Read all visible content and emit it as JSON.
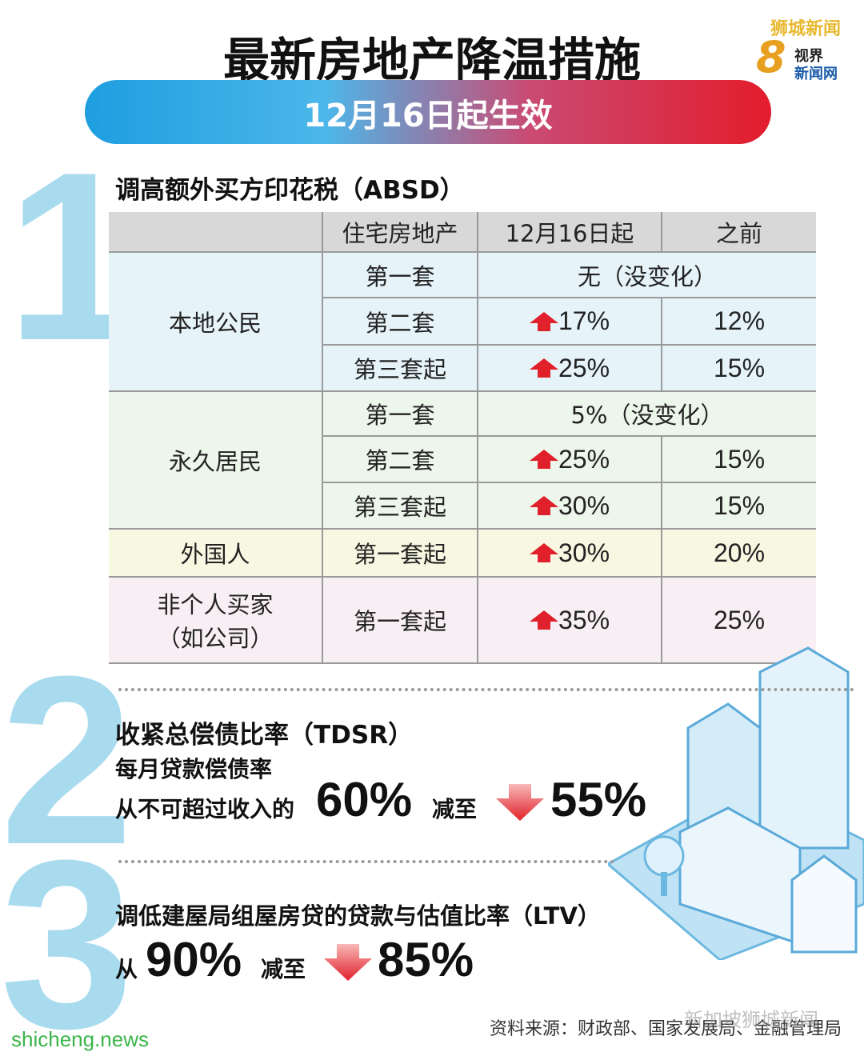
{
  "header": {
    "title": "最新房地产降温措施",
    "subtitle": "12月16日起生效"
  },
  "logo": {
    "brand": "狮城新闻",
    "number": "8",
    "line1": "视界",
    "line2": "新闻网"
  },
  "section1": {
    "number": "1",
    "heading": "调高额外买方印花税（ABSD）",
    "table": {
      "columns": [
        "住宅房地产",
        "12月16日起",
        "之前"
      ],
      "groups": [
        {
          "buyer": "本地公民",
          "rows": [
            {
              "property": "第一套",
              "unchanged": "无（没变化）"
            },
            {
              "property": "第二套",
              "new": "17%",
              "before": "12%"
            },
            {
              "property": "第三套起",
              "new": "25%",
              "before": "15%"
            }
          ]
        },
        {
          "buyer": "永久居民",
          "rows": [
            {
              "property": "第一套",
              "unchanged": "5%（没变化）"
            },
            {
              "property": "第二套",
              "new": "25%",
              "before": "15%"
            },
            {
              "property": "第三套起",
              "new": "30%",
              "before": "15%"
            }
          ]
        },
        {
          "buyer": "外国人",
          "rows": [
            {
              "property": "第一套起",
              "new": "30%",
              "before": "20%"
            }
          ]
        },
        {
          "buyer": "非个人买家",
          "buyer_note": "（如公司）",
          "rows": [
            {
              "property": "第一套起",
              "new": "35%",
              "before": "25%"
            }
          ]
        }
      ]
    }
  },
  "section2": {
    "number": "2",
    "title": "收紧总偿债比率（TDSR）",
    "subtitle": "每月贷款偿债率",
    "from_text": "从不可超过收入的",
    "from_value": "60%",
    "to_text": "减至",
    "to_value": "55%"
  },
  "section3": {
    "number": "3",
    "title": "调低建屋局组屋房贷的贷款与估值比率（LTV）",
    "from_text": "从",
    "from_value": "90%",
    "to_text": "减至",
    "to_value": "85%"
  },
  "footer": {
    "source": "资料来源：财政部、国家发展局、金融管理局",
    "watermark": "新加坡狮城新闻",
    "site": "shicheng.news"
  }
}
